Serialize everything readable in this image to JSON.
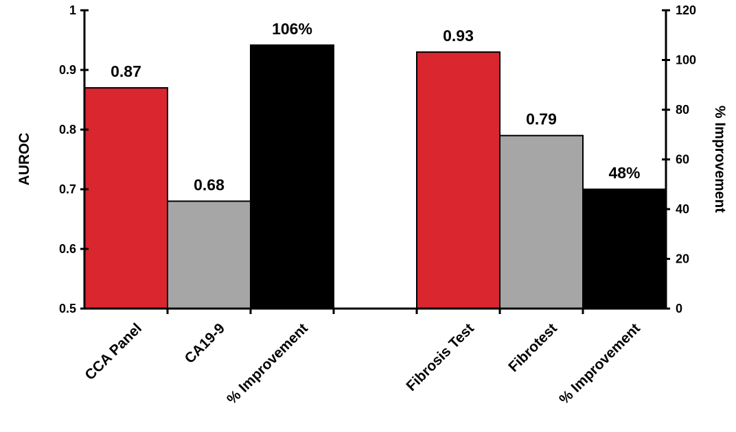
{
  "chart_data": {
    "type": "bar",
    "ylabel": "AUROC",
    "y2label": "% Improvement",
    "ylim": [
      0.5,
      1.0
    ],
    "y2lim": [
      0,
      120
    ],
    "yticks": [
      "0.5",
      "0.6",
      "0.7",
      "0.8",
      "0.9",
      "1"
    ],
    "y2ticks": [
      "0",
      "20",
      "40",
      "60",
      "80",
      "100",
      "120"
    ],
    "grid": false,
    "legend": "none",
    "colors": {
      "panel": "#d9262f",
      "comparator": "#a6a6a6",
      "improvement": "#000000"
    },
    "groups": [
      {
        "bars": [
          {
            "category": "CCA Panel",
            "value": 0.87,
            "axis": "left",
            "label": "0.87",
            "color_key": "panel"
          },
          {
            "category": "CA19-9",
            "value": 0.68,
            "axis": "left",
            "label": "0.68",
            "color_key": "comparator"
          },
          {
            "category": "% Improvement",
            "value": 106,
            "axis": "right",
            "label": "106%",
            "color_key": "improvement"
          }
        ]
      },
      {
        "bars": [
          {
            "category": "Fibrosis Test",
            "value": 0.93,
            "axis": "left",
            "label": "0.93",
            "color_key": "panel"
          },
          {
            "category": "Fibrotest",
            "value": 0.79,
            "axis": "left",
            "label": "0.79",
            "color_key": "comparator"
          },
          {
            "category": "% Improvement",
            "value": 48,
            "axis": "right",
            "label": "48%",
            "color_key": "improvement"
          }
        ]
      }
    ]
  }
}
